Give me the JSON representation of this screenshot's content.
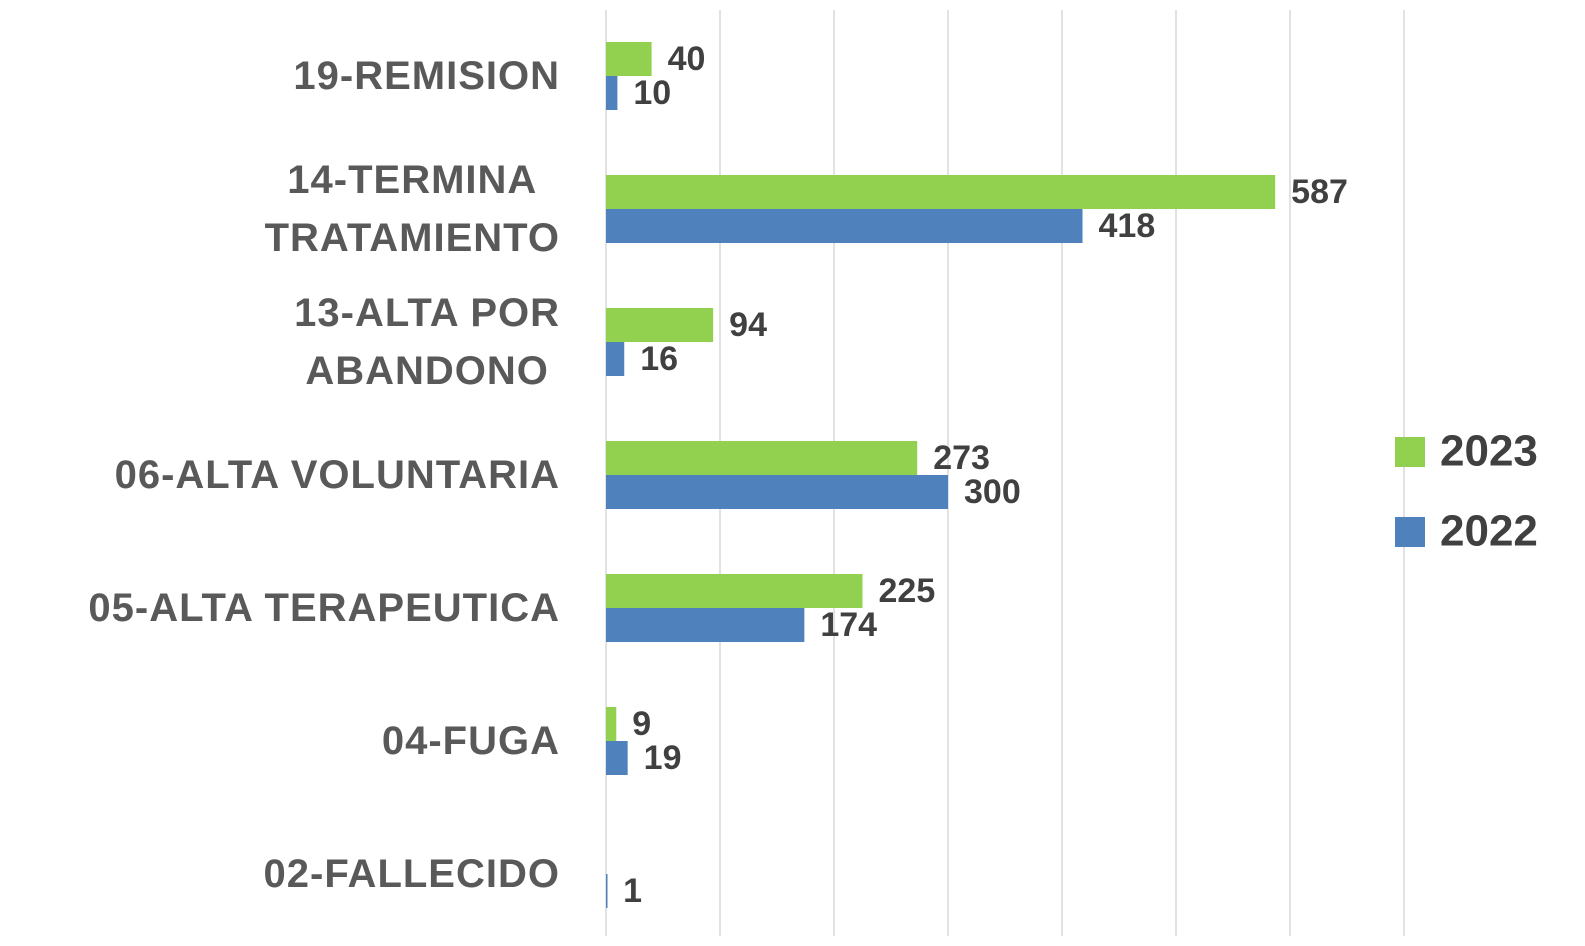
{
  "chart_data": {
    "type": "bar",
    "orientation": "horizontal",
    "categories": [
      "19-REMISION",
      "14-TERMINA\nTRATAMIENTO",
      "13-ALTA POR\nABANDONO",
      "06-ALTA VOLUNTARIA",
      "05-ALTA TERAPEUTICA",
      "04-FUGA",
      "02-FALLECIDO"
    ],
    "series": [
      {
        "name": "2023",
        "color": "#92d050",
        "values": [
          40,
          587,
          94,
          273,
          225,
          9,
          null
        ]
      },
      {
        "name": "2022",
        "color": "#4f81bd",
        "values": [
          10,
          418,
          16,
          300,
          174,
          19,
          1
        ]
      }
    ],
    "xlim": [
      0,
      700
    ],
    "xticks": [
      0,
      100,
      200,
      300,
      400,
      500,
      600,
      700
    ],
    "grid": true,
    "legend": "right"
  }
}
